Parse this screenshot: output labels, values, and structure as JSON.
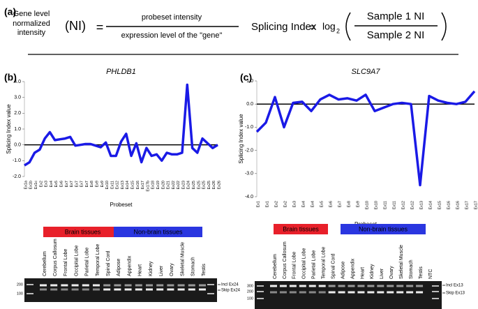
{
  "panel_a": {
    "label": "(a)",
    "ni_def": [
      "Gene level",
      "normalized",
      "intensity"
    ],
    "ni": "(NI)",
    "equals": "=",
    "numerator": "probeset intensity",
    "denominator": "expression level of the \"gene\"",
    "si_label": "Splicing Index",
    "si_equals": "=",
    "log": "log",
    "log_base": "2",
    "si_numerator": "Sample 1 NI",
    "si_denominator": "Sample 2 NI",
    "si_num_color": "#e8202a",
    "si_den_color": "#2020d0"
  },
  "chart_data": [
    {
      "panel": "(b)",
      "type": "line",
      "title": "PHLDB1",
      "x_label": "Probeset",
      "y_label": "Splicing Index value",
      "categories": [
        "Ex1a",
        "Ex1b",
        "Ex1c",
        "Ex2",
        "Ex3",
        "Ex4",
        "Ex5",
        "Ex6",
        "Ex7",
        "Ex7",
        "Ex7",
        "Ex7",
        "Ex7",
        "Ex8",
        "Ex9",
        "Ex9",
        "Ex10",
        "Ex11",
        "Ex12",
        "Ex13",
        "Ex14",
        "Ex15",
        "Ex16",
        "Ex17",
        "Ex17b",
        "Ex18",
        "Ex19",
        "Ex20",
        "Ex21",
        "Ex22",
        "Ex22",
        "Ex23",
        "Ex24",
        "Ex25",
        "Ex25",
        "Ex25",
        "Ex25",
        "Ex26",
        "Ex26"
      ],
      "values": [
        -1.3,
        -1.1,
        -0.5,
        -0.3,
        0.4,
        0.8,
        0.3,
        0.35,
        0.4,
        0.5,
        -0.05,
        0.0,
        0.05,
        0.05,
        -0.05,
        -0.15,
        0.15,
        -0.7,
        -0.7,
        0.2,
        0.7,
        -0.7,
        0.1,
        -1.1,
        -0.2,
        -0.7,
        -0.6,
        -1.0,
        -0.5,
        -0.6,
        -0.6,
        -0.5,
        3.8,
        -0.2,
        -0.5,
        0.4,
        0.1,
        -0.2,
        0.0
      ],
      "color": "#1a1ae6",
      "ylim": [
        -2,
        4
      ],
      "yticks": [
        {
          "value": -2,
          "label": "-2.0"
        },
        {
          "value": -1,
          "label": "-1.0"
        },
        {
          "value": 0,
          "label": "0.0"
        },
        {
          "value": 1,
          "label": "1.0"
        },
        {
          "value": 2,
          "label": "2.0"
        },
        {
          "value": 3,
          "label": "3.0"
        },
        {
          "value": 4,
          "label": "4.0"
        }
      ],
      "highlight_index": 32,
      "highlight_color": "#e8202a"
    },
    {
      "panel": "(c)",
      "type": "line",
      "title": "SLC9A7",
      "x_label": "Probeset",
      "y_label": "Splicing Index value",
      "categories": [
        "Ex1",
        "Ex1",
        "Ex2",
        "Ex2",
        "Ex3",
        "Ex4",
        "Ex4",
        "Ex5",
        "Ex6",
        "Ex7",
        "Ex8",
        "Ex9",
        "Ex10",
        "Ex10",
        "Ex11",
        "Ex11",
        "Ex12",
        "Ex12",
        "Ex13",
        "Ex14",
        "Ex15",
        "Ex16",
        "Ex16",
        "Ex17",
        "Ex17"
      ],
      "values": [
        -1.2,
        -0.8,
        0.3,
        -1.0,
        0.05,
        0.1,
        -0.3,
        0.2,
        0.4,
        0.2,
        0.25,
        0.15,
        0.4,
        -0.3,
        -0.15,
        0.0,
        0.05,
        0.0,
        -3.5,
        0.35,
        0.15,
        0.05,
        0.0,
        0.1,
        0.55
      ],
      "color": "#1a1ae6",
      "ylim": [
        -4,
        1
      ],
      "yticks": [
        {
          "value": -4,
          "label": "-4.0"
        },
        {
          "value": -3,
          "label": "-3.0"
        },
        {
          "value": -2,
          "label": "-2.0"
        },
        {
          "value": -1,
          "label": "-1.0"
        },
        {
          "value": 0,
          "label": "0.0"
        },
        {
          "value": 1,
          "label": "1.0"
        }
      ],
      "highlight_index": 18,
      "highlight_color": "#e8202a"
    }
  ],
  "gels": [
    {
      "groups": [
        {
          "label": "Brain tissues",
          "color": "#e8202a"
        },
        {
          "label": "Non-brain tissues",
          "color": "#2a36e0"
        }
      ],
      "lanes": [
        {
          "label": "Cerebellum",
          "color": "#e8202a"
        },
        {
          "label": "Corpus Callosum",
          "color": "#e8202a"
        },
        {
          "label": "Frontal Lobe",
          "color": "#e8202a"
        },
        {
          "label": "Occipital Lobe",
          "color": "#e8202a"
        },
        {
          "label": "Parietal Lobe",
          "color": "#e8202a"
        },
        {
          "label": "Temporal Lobe",
          "color": "#e8202a"
        },
        {
          "label": "Spinal Cord",
          "color": "#000000"
        },
        {
          "label": "Adipose",
          "color": "#2a36e0"
        },
        {
          "label": "Appendix",
          "color": "#2a36e0"
        },
        {
          "label": "Heart",
          "color": "#2a36e0"
        },
        {
          "label": "Kidney",
          "color": "#2a36e0"
        },
        {
          "label": "Liver",
          "color": "#2a36e0"
        },
        {
          "label": "Ovary",
          "color": "#2a36e0"
        },
        {
          "label": "Skeletal Muscle",
          "color": "#2a36e0"
        },
        {
          "label": "Stomach",
          "color": "#2a36e0"
        },
        {
          "label": "Testis",
          "color": "#2a36e0"
        }
      ],
      "ladder": [
        "200",
        "100"
      ],
      "bands": [
        "Incl Ex24",
        "Skip Ex24"
      ]
    },
    {
      "groups": [
        {
          "label": "Brain tissues",
          "color": "#e8202a"
        },
        {
          "label": "Non-brain tissues",
          "color": "#2a36e0"
        }
      ],
      "lanes": [
        {
          "label": "Cerebellum",
          "color": "#e8202a"
        },
        {
          "label": "Corpus Callosum",
          "color": "#e8202a"
        },
        {
          "label": "Frontal Lobe",
          "color": "#e8202a"
        },
        {
          "label": "Occipital Lobe",
          "color": "#e8202a"
        },
        {
          "label": "Parietal Lobe",
          "color": "#e8202a"
        },
        {
          "label": "Temporal Lobe",
          "color": "#e8202a"
        },
        {
          "label": "Spinal Cord",
          "color": "#000000"
        },
        {
          "label": "Adipose",
          "color": "#2a36e0"
        },
        {
          "label": "Appendix",
          "color": "#2a36e0"
        },
        {
          "label": "Heart",
          "color": "#2a36e0"
        },
        {
          "label": "Kidney",
          "color": "#2a36e0"
        },
        {
          "label": "Liver",
          "color": "#2a36e0"
        },
        {
          "label": "Ovary",
          "color": "#2a36e0"
        },
        {
          "label": "Skeletal Muscle",
          "color": "#2a36e0"
        },
        {
          "label": "Stomach",
          "color": "#2a36e0"
        },
        {
          "label": "Testis",
          "color": "#2a36e0"
        },
        {
          "label": "NTC",
          "color": "#000000"
        }
      ],
      "ladder": [
        "300",
        "200",
        "100"
      ],
      "bands": [
        "Incl Ex13",
        "Skip Ex13"
      ]
    }
  ]
}
